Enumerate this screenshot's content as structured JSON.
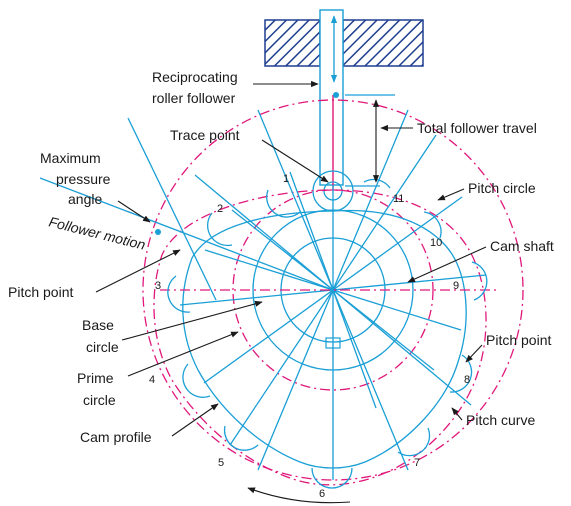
{
  "labels": {
    "reciprocating_1": "Reciprocating",
    "reciprocating_2": "roller follower",
    "trace_point": "Trace point",
    "total_travel": "Total follower travel",
    "max_pressure_1": "Maximum",
    "max_pressure_2": "pressure",
    "max_pressure_3": "angle",
    "follower_motion": "Follower motion",
    "pitch_circle": "Pitch circle",
    "cam_shaft": "Cam shaft",
    "pitch_point_left": "Pitch point",
    "base_circle_1": "Base",
    "base_circle_2": "circle",
    "prime_circle_1": "Prime",
    "prime_circle_2": "circle",
    "pitch_point_right": "Pitch point",
    "pitch_curve": "Pitch curve",
    "cam_profile": "Cam profile"
  },
  "positions": [
    "1",
    "2",
    "3",
    "4",
    "5",
    "6",
    "7",
    "8",
    "9",
    "10",
    "11"
  ],
  "colors": {
    "blue": "#1a9fd6",
    "magenta": "#e0187c",
    "black": "#1a1a1a"
  }
}
